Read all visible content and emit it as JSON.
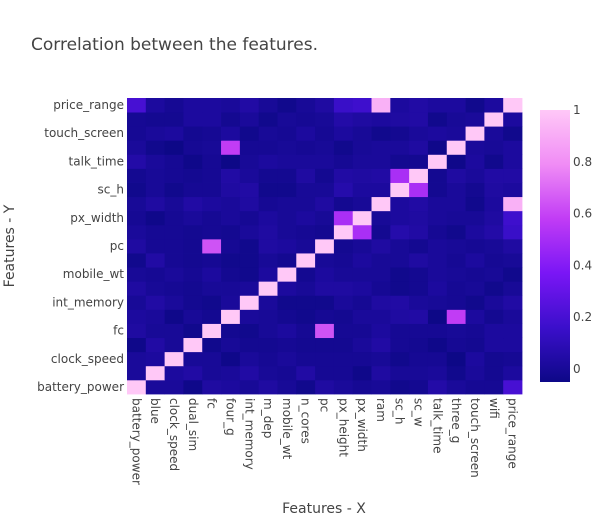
{
  "chart_data": {
    "type": "heatmap",
    "title": "Correlation between the features.",
    "xlabel": "Features - X",
    "ylabel": "Features - Y",
    "features": [
      "battery_power",
      "blue",
      "clock_speed",
      "dual_sim",
      "fc",
      "four_g",
      "int_memory",
      "m_dep",
      "mobile_wt",
      "n_cores",
      "pc",
      "px_height",
      "px_width",
      "ram",
      "sc_h",
      "sc_w",
      "talk_time",
      "three_g",
      "touch_screen",
      "wifi",
      "price_range"
    ],
    "colorbar": {
      "ticks": [
        0,
        0.2,
        0.4,
        0.6,
        0.8,
        1
      ],
      "zmin": -0.05,
      "zmax": 1
    },
    "colorscale": [
      "#0d0887",
      "#3b0fcb",
      "#7a16f5",
      "#c13cf5",
      "#f08cf5",
      "#ffc8f7"
    ],
    "z": [
      [
        1.0,
        0.01,
        0.01,
        -0.04,
        0.03,
        0.02,
        -0.0,
        0.03,
        0.0,
        -0.03,
        0.03,
        0.01,
        -0.01,
        -0.0,
        -0.03,
        -0.02,
        0.05,
        0.01,
        -0.01,
        -0.01,
        0.2
      ],
      [
        0.01,
        1.0,
        0.02,
        0.04,
        0.0,
        0.01,
        0.04,
        0.0,
        -0.01,
        0.04,
        -0.01,
        -0.01,
        -0.04,
        0.03,
        -0.0,
        0.0,
        0.01,
        -0.03,
        0.01,
        -0.02,
        0.02
      ],
      [
        0.01,
        0.02,
        1.0,
        -0.0,
        -0.0,
        -0.04,
        0.01,
        -0.01,
        0.01,
        -0.01,
        -0.01,
        -0.01,
        -0.01,
        0.0,
        -0.03,
        -0.01,
        -0.01,
        -0.05,
        0.02,
        -0.02,
        -0.01
      ],
      [
        -0.04,
        0.04,
        -0.0,
        1.0,
        -0.03,
        0.0,
        -0.02,
        -0.02,
        -0.01,
        -0.02,
        -0.02,
        -0.02,
        0.01,
        0.04,
        -0.01,
        -0.02,
        -0.04,
        -0.01,
        -0.02,
        0.02,
        0.02
      ],
      [
        0.03,
        0.0,
        -0.0,
        -0.03,
        1.0,
        -0.02,
        -0.03,
        -0.0,
        0.02,
        -0.01,
        0.64,
        -0.01,
        -0.01,
        0.02,
        -0.01,
        -0.01,
        -0.01,
        0.0,
        -0.01,
        0.02,
        0.02
      ],
      [
        0.02,
        0.01,
        -0.04,
        0.0,
        -0.02,
        1.0,
        0.01,
        -0.0,
        -0.02,
        -0.03,
        -0.01,
        -0.02,
        0.01,
        0.01,
        0.03,
        0.04,
        -0.05,
        0.58,
        0.02,
        -0.02,
        0.01
      ],
      [
        -0.0,
        0.04,
        0.01,
        -0.02,
        -0.03,
        0.01,
        1.0,
        0.01,
        -0.03,
        -0.03,
        -0.03,
        0.01,
        -0.01,
        0.03,
        0.04,
        0.01,
        -0.0,
        -0.01,
        -0.03,
        0.01,
        0.04
      ],
      [
        0.03,
        0.0,
        -0.01,
        -0.02,
        -0.0,
        -0.0,
        0.01,
        1.0,
        0.02,
        -0.0,
        0.03,
        0.03,
        0.02,
        -0.01,
        -0.03,
        -0.02,
        0.02,
        -0.01,
        -0.0,
        -0.03,
        0.0
      ],
      [
        0.0,
        -0.01,
        0.01,
        -0.01,
        0.02,
        -0.02,
        -0.03,
        0.02,
        1.0,
        -0.02,
        0.02,
        0.0,
        0.0,
        -0.0,
        -0.03,
        -0.02,
        0.01,
        0.0,
        -0.01,
        -0.0,
        -0.03
      ],
      [
        -0.03,
        0.04,
        -0.01,
        -0.02,
        -0.01,
        -0.03,
        -0.03,
        -0.0,
        -0.02,
        1.0,
        -0.0,
        -0.01,
        0.02,
        0.0,
        -0.0,
        0.03,
        0.01,
        -0.01,
        0.02,
        -0.01,
        0.0
      ],
      [
        0.03,
        -0.01,
        -0.01,
        -0.02,
        0.64,
        -0.01,
        -0.03,
        0.03,
        0.02,
        -0.0,
        1.0,
        -0.02,
        0.0,
        0.03,
        0.0,
        -0.02,
        0.01,
        -0.0,
        -0.01,
        0.0,
        0.03
      ],
      [
        0.01,
        -0.01,
        -0.01,
        -0.02,
        -0.01,
        -0.02,
        0.01,
        0.03,
        0.0,
        -0.01,
        -0.02,
        1.0,
        0.51,
        -0.02,
        0.06,
        0.04,
        -0.01,
        -0.03,
        0.02,
        0.05,
        0.15
      ],
      [
        -0.01,
        -0.04,
        -0.01,
        0.01,
        -0.01,
        0.01,
        -0.01,
        0.02,
        0.0,
        0.02,
        0.0,
        0.51,
        1.0,
        0.0,
        0.02,
        0.03,
        0.01,
        0.0,
        -0.0,
        0.03,
        0.17
      ],
      [
        -0.0,
        0.03,
        0.0,
        0.04,
        0.02,
        0.01,
        0.03,
        -0.01,
        -0.0,
        0.0,
        0.03,
        -0.02,
        0.0,
        1.0,
        0.02,
        0.04,
        0.01,
        0.01,
        -0.03,
        0.02,
        0.92
      ],
      [
        -0.03,
        -0.0,
        -0.03,
        -0.01,
        -0.01,
        0.03,
        0.04,
        -0.03,
        -0.03,
        -0.0,
        0.0,
        0.06,
        0.02,
        0.02,
        1.0,
        0.51,
        -0.02,
        0.01,
        -0.02,
        0.03,
        0.02
      ],
      [
        -0.02,
        0.0,
        -0.01,
        -0.02,
        -0.01,
        0.04,
        0.01,
        -0.02,
        -0.02,
        0.03,
        -0.02,
        0.04,
        0.03,
        0.04,
        0.51,
        1.0,
        -0.02,
        0.03,
        0.01,
        0.04,
        0.04
      ],
      [
        0.05,
        0.01,
        -0.01,
        -0.04,
        -0.01,
        -0.05,
        -0.0,
        0.02,
        0.01,
        0.01,
        0.01,
        -0.01,
        0.01,
        0.01,
        -0.02,
        -0.02,
        1.0,
        -0.04,
        0.02,
        -0.03,
        0.02
      ],
      [
        0.01,
        -0.03,
        -0.05,
        -0.01,
        0.0,
        0.58,
        -0.01,
        -0.01,
        0.0,
        -0.01,
        -0.0,
        -0.03,
        0.0,
        0.01,
        0.01,
        0.03,
        -0.04,
        1.0,
        0.01,
        0.0,
        0.02
      ],
      [
        -0.01,
        0.01,
        0.02,
        -0.02,
        -0.01,
        0.02,
        -0.03,
        -0.0,
        -0.01,
        0.02,
        -0.01,
        0.02,
        -0.0,
        -0.03,
        -0.02,
        0.01,
        0.02,
        0.01,
        1.0,
        0.01,
        -0.03
      ],
      [
        -0.01,
        -0.02,
        -0.02,
        0.02,
        0.02,
        -0.02,
        0.01,
        -0.03,
        -0.0,
        -0.01,
        0.0,
        0.05,
        0.03,
        0.02,
        0.03,
        0.04,
        -0.03,
        0.0,
        0.01,
        1.0,
        0.02
      ],
      [
        0.2,
        0.02,
        -0.01,
        0.02,
        0.02,
        0.01,
        0.04,
        0.0,
        -0.03,
        0.0,
        0.03,
        0.15,
        0.17,
        0.92,
        0.02,
        0.04,
        0.02,
        0.02,
        -0.03,
        0.02,
        1.0
      ]
    ]
  }
}
